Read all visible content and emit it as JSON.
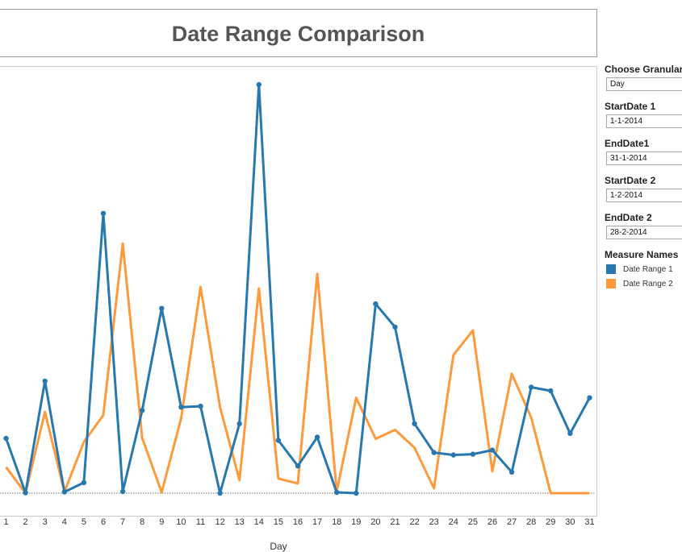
{
  "title": "Date Range Comparison",
  "controls": {
    "granularity": {
      "label": "Choose Granularity",
      "value": "Day"
    },
    "start1": {
      "label": "StartDate 1",
      "value": "1-1-2014"
    },
    "end1": {
      "label": "EndDate1",
      "value": "31-1-2014"
    },
    "start2": {
      "label": "StartDate 2",
      "value": "1-2-2014"
    },
    "end2": {
      "label": "EndDate 2",
      "value": "28-2-2014"
    }
  },
  "legend": {
    "title": "Measure Names",
    "items": [
      {
        "label": "Date Range 1",
        "color": "#2878b0"
      },
      {
        "label": "Date Range 2",
        "color": "#ff9a3c"
      }
    ]
  },
  "chart_data": {
    "type": "line",
    "xlabel": "Day",
    "ylabel": "",
    "categories": [
      "1",
      "2",
      "3",
      "4",
      "5",
      "6",
      "7",
      "8",
      "9",
      "10",
      "11",
      "12",
      "13",
      "14",
      "15",
      "16",
      "17",
      "18",
      "19",
      "20",
      "21",
      "22",
      "23",
      "24",
      "25",
      "26",
      "27",
      "28",
      "29",
      "30",
      "31"
    ],
    "series": [
      {
        "name": "Date Range 1",
        "color": "#2878b0",
        "values": [
          13.5,
          0.1,
          27.6,
          0.3,
          2.6,
          68.9,
          0.4,
          20.4,
          45.5,
          21.2,
          21.4,
          0,
          17.1,
          100.6,
          13,
          6.7,
          13.8,
          0.2,
          0,
          46.6,
          40.9,
          17.1,
          10,
          9.4,
          9.6,
          10.6,
          5.2,
          26.1,
          25.2,
          14.7,
          23.5
        ]
      },
      {
        "name": "Date Range 2",
        "color": "#ff9a3c",
        "markers": false,
        "values": [
          6.4,
          0,
          20,
          0.3,
          12.6,
          19.2,
          61.5,
          13.6,
          0.2,
          18.4,
          50.8,
          21.2,
          3.2,
          50.4,
          3.6,
          2.4,
          54,
          0.4,
          23.5,
          13.4,
          15.6,
          11.2,
          1.2,
          34,
          40.1,
          5.4,
          29.4,
          18.6,
          0,
          0,
          0
        ]
      }
    ],
    "ylim": [
      0,
      100.6
    ],
    "grid": false,
    "legend_position": "right"
  }
}
